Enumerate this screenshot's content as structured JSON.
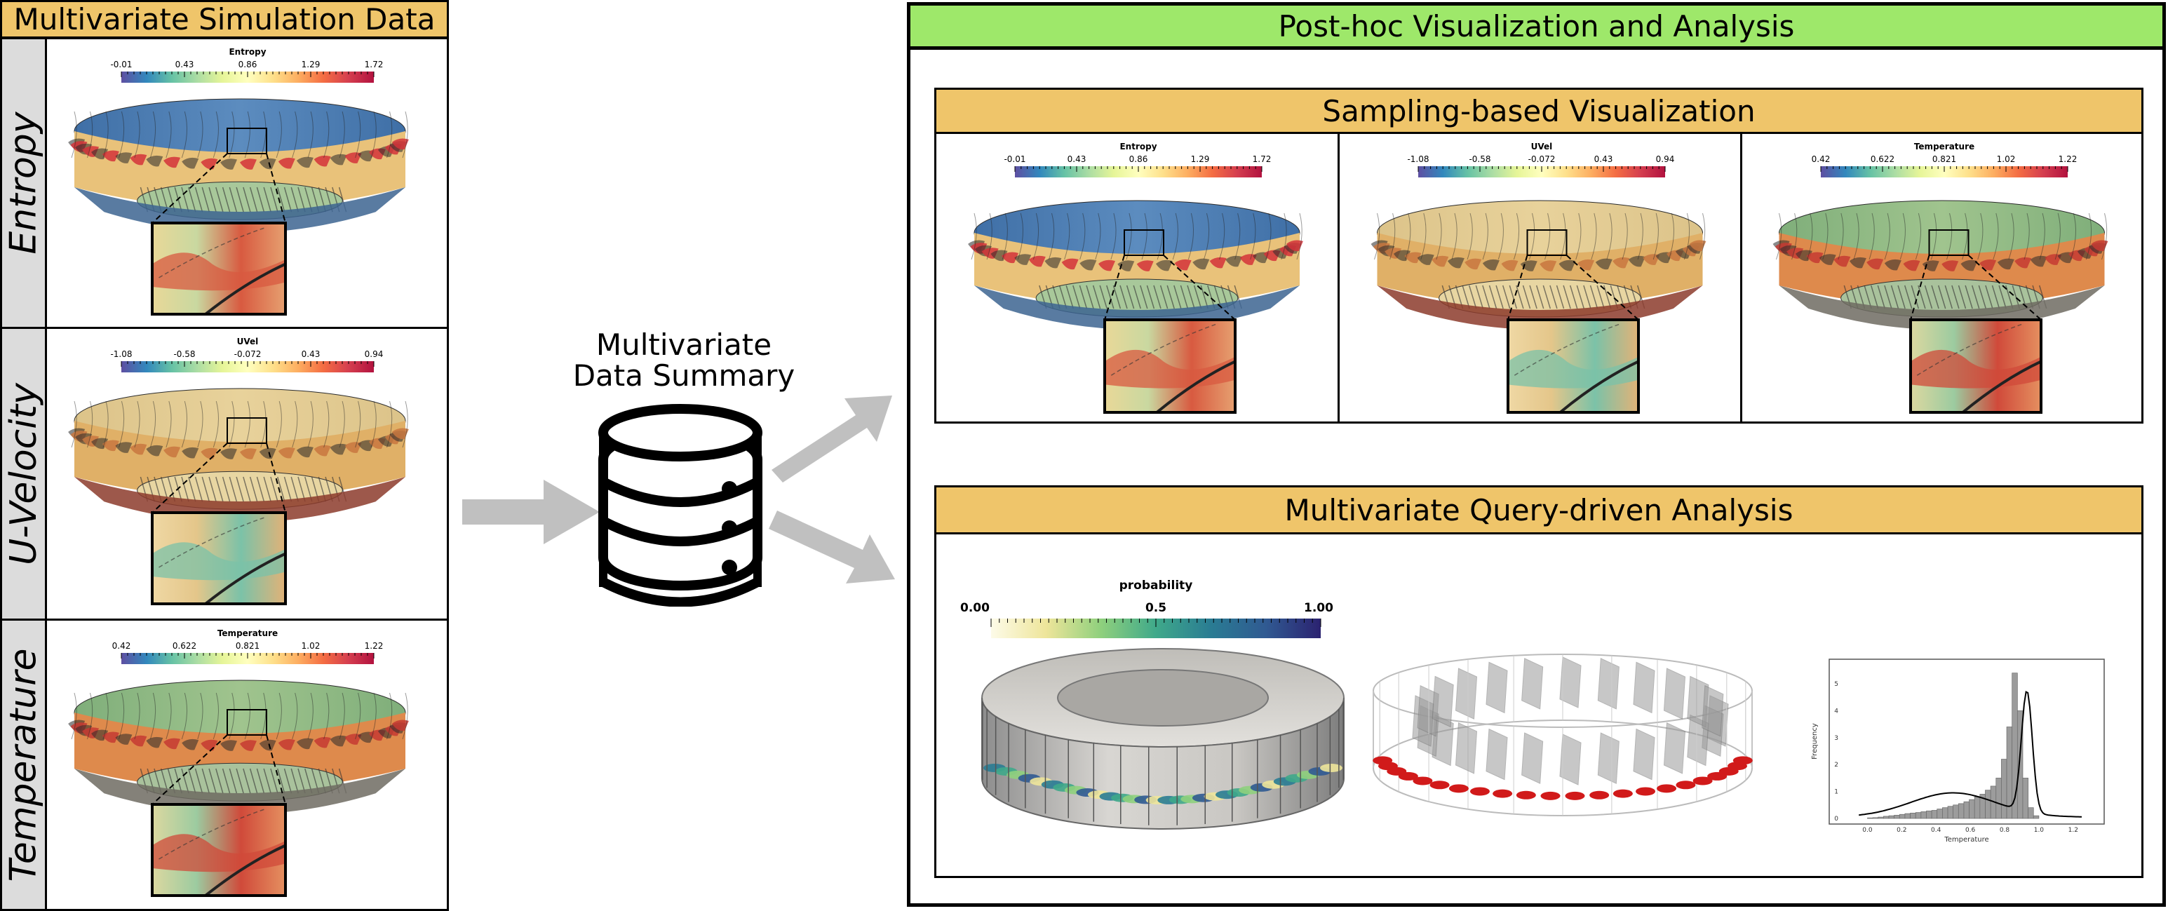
{
  "left": {
    "title": "Multivariate Simulation Data",
    "rows": [
      {
        "label": "Entropy",
        "colorbar": {
          "title": "Entropy",
          "ticks": [
            "-0.01",
            "0.43",
            "0.86",
            "1.29",
            "1.72"
          ],
          "scheme": "spectral"
        },
        "tone": "entropy"
      },
      {
        "label": "U-Velocity",
        "colorbar": {
          "title": "UVel",
          "ticks": [
            "-1.08",
            "-0.58",
            "-0.072",
            "0.43",
            "0.94"
          ],
          "scheme": "spectral"
        },
        "tone": "uvel"
      },
      {
        "label": "Temperature",
        "colorbar": {
          "title": "Temperature",
          "ticks": [
            "0.42",
            "0.622",
            "0.821",
            "1.02",
            "1.22"
          ],
          "scheme": "spectral"
        },
        "tone": "temp"
      }
    ]
  },
  "middle": {
    "summary_line1": "Multivariate",
    "summary_line2": "Data Summary"
  },
  "right": {
    "title": "Post-hoc Visualization and Analysis",
    "sampling": {
      "title": "Sampling-based Visualization",
      "panels": [
        {
          "colorbar": {
            "title": "Entropy",
            "ticks": [
              "-0.01",
              "0.43",
              "0.86",
              "1.29",
              "1.72"
            ]
          },
          "tone": "entropy"
        },
        {
          "colorbar": {
            "title": "UVel",
            "ticks": [
              "-1.08",
              "-0.58",
              "-0.072",
              "0.43",
              "0.94"
            ]
          },
          "tone": "uvel"
        },
        {
          "colorbar": {
            "title": "Temperature",
            "ticks": [
              "0.42",
              "0.622",
              "0.821",
              "1.02",
              "1.22"
            ]
          },
          "tone": "temp"
        }
      ]
    },
    "query": {
      "title": "Multivariate Query-driven Analysis",
      "probability_bar": {
        "title": "probability",
        "ticks": [
          "0.00",
          "0.5",
          "1.00"
        ]
      },
      "histogram": {
        "xlabel": "Temperature",
        "ylabel": "Frequency",
        "xticks": [
          "0.0",
          "0.2",
          "0.4",
          "0.6",
          "0.8",
          "1.0",
          "1.2"
        ],
        "yticks": [
          "0",
          "1",
          "2",
          "3",
          "4",
          "5"
        ],
        "bins": [
          0.02,
          0.03,
          0.05,
          0.08,
          0.1,
          0.12,
          0.15,
          0.18,
          0.2,
          0.22,
          0.25,
          0.28,
          0.3,
          0.35,
          0.4,
          0.45,
          0.5,
          0.55,
          0.62,
          0.7,
          0.8,
          0.9,
          1.05,
          1.2,
          1.5,
          2.2,
          3.4,
          5.4,
          4.0,
          1.5,
          0.4,
          0.1
        ]
      }
    }
  },
  "colors": {
    "gold": "#efc56a",
    "green": "#9ee86a",
    "arrow": "#c0c0c0",
    "spectral": [
      "#5e4fa2",
      "#3288bd",
      "#66c2a5",
      "#abdda4",
      "#e6f598",
      "#ffffbf",
      "#fee08b",
      "#fdae61",
      "#f46d43",
      "#d53e4f",
      "#b2123f"
    ],
    "probability": [
      "#fdfbe8",
      "#eee59a",
      "#8fd07d",
      "#3fa98a",
      "#2a7c93",
      "#305a92",
      "#2b2270"
    ]
  }
}
